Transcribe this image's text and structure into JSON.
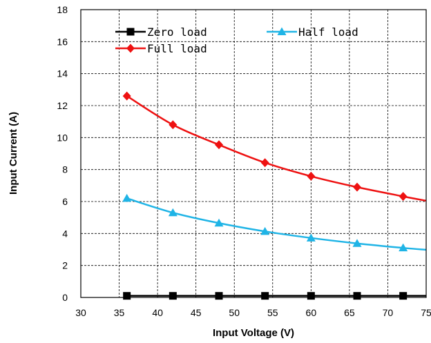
{
  "chart_data": {
    "type": "line",
    "xlabel": "Input Voltage (V)",
    "ylabel": "Input Current (A)",
    "xlim": [
      30,
      75
    ],
    "ylim": [
      0,
      18
    ],
    "xticks": [
      "30",
      "35",
      "40",
      "45",
      "50",
      "55",
      "60",
      "65",
      "70",
      "75"
    ],
    "yticks": [
      "0",
      "2",
      "4",
      "6",
      "8",
      "10",
      "12",
      "14",
      "16",
      "18"
    ],
    "grid": true,
    "legend_position": "top",
    "series": [
      {
        "name": "Zero load",
        "color": "#000000",
        "marker": "square",
        "x": [
          36,
          42,
          48,
          54,
          60,
          66,
          72,
          75
        ],
        "y": [
          0.1,
          0.1,
          0.1,
          0.1,
          0.1,
          0.1,
          0.1,
          0.1
        ],
        "marker_count": 7
      },
      {
        "name": "Half load",
        "color": "#1fb4e6",
        "marker": "triangle",
        "x": [
          36,
          42,
          48,
          54,
          60,
          66,
          72,
          75
        ],
        "y": [
          6.2,
          5.3,
          4.65,
          4.13,
          3.72,
          3.38,
          3.1,
          2.98
        ],
        "marker_count": 7
      },
      {
        "name": "Full load",
        "color": "#ee1111",
        "marker": "diamond",
        "x": [
          36,
          42,
          48,
          54,
          60,
          66,
          72,
          75
        ],
        "y": [
          12.6,
          10.8,
          9.55,
          8.43,
          7.58,
          6.9,
          6.32,
          6.05
        ],
        "marker_count": 7
      }
    ]
  }
}
